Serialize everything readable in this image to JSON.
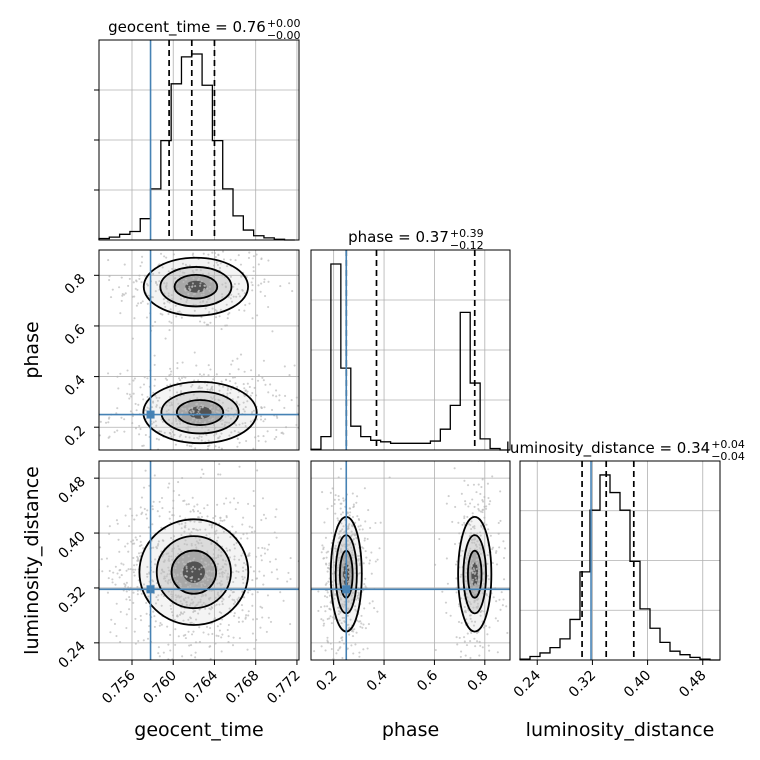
{
  "chart_data": {
    "type": "corner",
    "parameters": [
      "geocent_time",
      "phase",
      "luminosity_distance"
    ],
    "axis_labels": {
      "geocent_time": "geocent_time",
      "phase": "phase",
      "luminosity_distance": "luminosity_distance"
    },
    "titles": [
      {
        "param": "geocent_time",
        "label": "geocent_time = 0.76",
        "sup": "+0.00",
        "sub": "−0.00"
      },
      {
        "param": "phase",
        "label": "phase = 0.37",
        "sup": "+0.39",
        "sub": "−0.12"
      },
      {
        "param": "luminosity_distance",
        "label": "luminosity_distance = 0.34",
        "sup": "+0.04",
        "sub": "−0.04"
      }
    ],
    "ranges": {
      "geocent_time": [
        0.7528,
        0.7722
      ],
      "phase": [
        0.11,
        0.9
      ],
      "luminosity_distance": [
        0.215,
        0.505
      ]
    },
    "ticks": {
      "geocent_time": [
        "0.756",
        "0.760",
        "0.764",
        "0.768",
        "0.772"
      ],
      "phase": [
        "0.2",
        "0.4",
        "0.6",
        "0.8"
      ],
      "luminosity_distance": [
        "0.24",
        "0.32",
        "0.40",
        "0.48"
      ]
    },
    "truths": {
      "geocent_time": 0.7578,
      "phase": 0.25,
      "luminosity_distance": 0.318
    },
    "quantiles": {
      "geocent_time": [
        0.7596,
        0.7618,
        0.764
      ],
      "phase": [
        0.25,
        0.37,
        0.76
      ],
      "luminosity_distance": [
        0.305,
        0.34,
        0.38
      ]
    },
    "histograms": {
      "geocent_time": {
        "edges": [
          0.7528,
          0.7538,
          0.7548,
          0.7558,
          0.7568,
          0.7578,
          0.7588,
          0.7598,
          0.7608,
          0.7618,
          0.7628,
          0.7638,
          0.7648,
          0.7658,
          0.7668,
          0.7678,
          0.7688,
          0.7698,
          0.7708,
          0.7718
        ],
        "counts": [
          2,
          4,
          8,
          12,
          30,
          72,
          140,
          220,
          258,
          262,
          218,
          140,
          72,
          34,
          14,
          6,
          3,
          1,
          0
        ]
      },
      "phase": {
        "edges": [
          0.11,
          0.1495,
          0.189,
          0.2285,
          0.268,
          0.3075,
          0.347,
          0.3865,
          0.426,
          0.4655,
          0.505,
          0.5445,
          0.584,
          0.6235,
          0.663,
          0.7025,
          0.742,
          0.7815,
          0.821,
          0.8605,
          0.9
        ],
        "counts": [
          1,
          18,
          250,
          110,
          32,
          18,
          13,
          11,
          9,
          9,
          9,
          9,
          12,
          28,
          60,
          185,
          90,
          15,
          2,
          0
        ]
      },
      "luminosity_distance": {
        "edges": [
          0.215,
          0.2295,
          0.244,
          0.2585,
          0.273,
          0.2875,
          0.302,
          0.3165,
          0.331,
          0.3455,
          0.36,
          0.3745,
          0.389,
          0.4035,
          0.418,
          0.4325,
          0.447,
          0.4615,
          0.476,
          0.4905,
          0.505
        ],
        "counts": [
          1,
          4,
          8,
          14,
          24,
          46,
          100,
          170,
          210,
          190,
          170,
          112,
          58,
          36,
          20,
          10,
          6,
          3,
          1,
          0
        ]
      }
    },
    "contours_2d": [
      {
        "pair": [
          "geocent_time",
          "phase"
        ],
        "modes": [
          {
            "cx": 0.7622,
            "cy": 0.755,
            "sx": 0.0023,
            "sy": 0.052,
            "weight": 0.38
          },
          {
            "cx": 0.7626,
            "cy": 0.258,
            "sx": 0.0025,
            "sy": 0.055,
            "weight": 0.62
          }
        ]
      },
      {
        "pair": [
          "geocent_time",
          "luminosity_distance"
        ],
        "modes": [
          {
            "cx": 0.762,
            "cy": 0.343,
            "sx": 0.0024,
            "sy": 0.035,
            "weight": 1.0
          }
        ]
      },
      {
        "pair": [
          "phase",
          "luminosity_distance"
        ],
        "modes": [
          {
            "cx": 0.25,
            "cy": 0.34,
            "sx": 0.028,
            "sy": 0.038,
            "weight": 0.58
          },
          {
            "cx": 0.76,
            "cy": 0.34,
            "sx": 0.03,
            "sy": 0.038,
            "weight": 0.42
          }
        ]
      }
    ],
    "colors": {
      "truth": "#4682b4",
      "hist": "#000000",
      "contour": "#000000",
      "grid": "#b0b0b0",
      "points": "#bdbdbd"
    },
    "grid": true
  }
}
